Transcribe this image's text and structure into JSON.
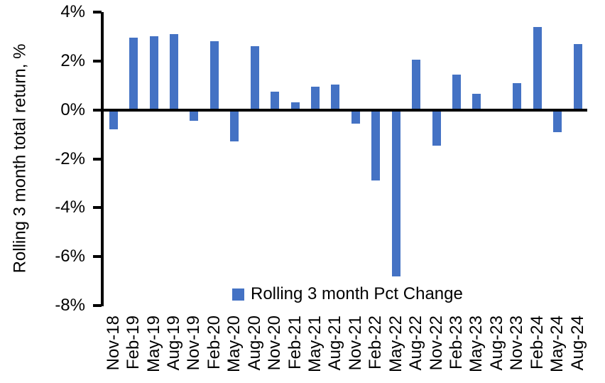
{
  "chart_data": {
    "type": "bar",
    "title": "",
    "xlabel": "",
    "ylabel": "Rolling 3 month total return, %",
    "legend_position": "bottom-center",
    "grid": false,
    "bar_color": "#4472C4",
    "axis_color": "#000000",
    "background_color": "#FFFFFF",
    "ylim": [
      -8,
      4
    ],
    "ytick_step": 2,
    "yticks": [
      {
        "value": 4,
        "label": "4%"
      },
      {
        "value": 2,
        "label": "2%"
      },
      {
        "value": 0,
        "label": "0%"
      },
      {
        "value": -2,
        "label": "-2%"
      },
      {
        "value": -4,
        "label": "-4%"
      },
      {
        "value": -6,
        "label": "-6%"
      },
      {
        "value": -8,
        "label": "-8%"
      }
    ],
    "categories": [
      "Nov-18",
      "Feb-19",
      "May-19",
      "Aug-19",
      "Nov-19",
      "Feb-20",
      "May-20",
      "Aug-20",
      "Nov-20",
      "Feb-21",
      "May-21",
      "Aug-21",
      "Nov-21",
      "Feb-22",
      "May-22",
      "Aug-22",
      "Nov-22",
      "Feb-23",
      "May-23",
      "Aug-23",
      "Nov-23",
      "Feb-24",
      "May-24",
      "Aug-24"
    ],
    "series": [
      {
        "name": "Rolling 3 month Pct Change",
        "values": [
          -0.8,
          2.95,
          3.0,
          3.1,
          -0.45,
          2.8,
          -1.3,
          2.6,
          0.75,
          0.3,
          0.95,
          1.05,
          -0.55,
          -2.9,
          -6.8,
          2.05,
          -1.45,
          1.45,
          0.65,
          0.0,
          1.1,
          3.4,
          -0.9,
          2.7
        ]
      }
    ]
  }
}
